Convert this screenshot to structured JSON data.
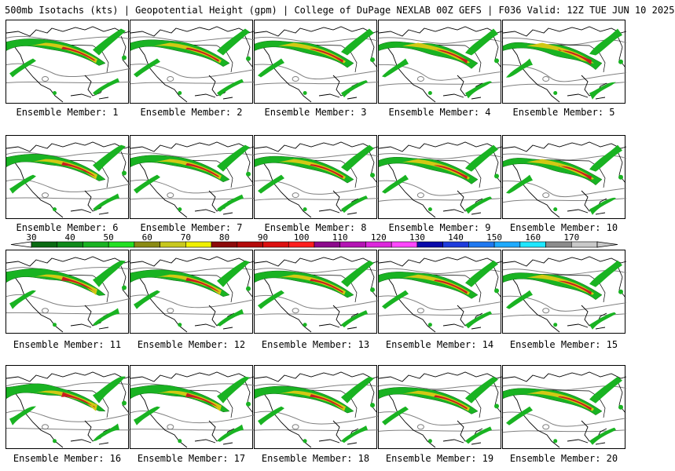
{
  "header": {
    "title": "500mb Isotachs (kts) | Geopotential Height (gpm) | College of DuPage NEXLAB   00Z GEFS | F036 Valid: 12Z TUE JUN 10 2025"
  },
  "panels": [
    {
      "member": 1,
      "caption": "Ensemble Member: 1"
    },
    {
      "member": 2,
      "caption": "Ensemble Member: 2"
    },
    {
      "member": 3,
      "caption": "Ensemble Member: 3"
    },
    {
      "member": 4,
      "caption": "Ensemble Member: 4"
    },
    {
      "member": 5,
      "caption": "Ensemble Member: 5"
    },
    {
      "member": 6,
      "caption": "Ensemble Member: 6"
    },
    {
      "member": 7,
      "caption": "Ensemble Member: 7"
    },
    {
      "member": 8,
      "caption": "Ensemble Member: 8"
    },
    {
      "member": 9,
      "caption": "Ensemble Member: 9"
    },
    {
      "member": 10,
      "caption": "Ensemble Member: 10"
    },
    {
      "member": 11,
      "caption": "Ensemble Member: 11"
    },
    {
      "member": 12,
      "caption": "Ensemble Member: 12"
    },
    {
      "member": 13,
      "caption": "Ensemble Member: 13"
    },
    {
      "member": 14,
      "caption": "Ensemble Member: 14"
    },
    {
      "member": 15,
      "caption": "Ensemble Member: 15"
    },
    {
      "member": 16,
      "caption": "Ensemble Member: 16"
    },
    {
      "member": 17,
      "caption": "Ensemble Member: 17"
    },
    {
      "member": 18,
      "caption": "Ensemble Member: 18"
    },
    {
      "member": 19,
      "caption": "Ensemble Member: 19"
    },
    {
      "member": 20,
      "caption": "Ensemble Member: 20"
    }
  ],
  "colorbar": {
    "labels": [
      "30",
      "40",
      "50",
      "60",
      "70",
      "80",
      "90",
      "100",
      "110",
      "120",
      "130",
      "140",
      "150",
      "160",
      "170"
    ],
    "colors": [
      "#0a6a12",
      "#0f8a1a",
      "#19b322",
      "#22e022",
      "#8a8a14",
      "#c8c81e",
      "#f0f000",
      "#8c0a0a",
      "#b40a0a",
      "#dc1010",
      "#ff1e1e",
      "#8c0a8c",
      "#b414b4",
      "#dc28dc",
      "#ff46ff",
      "#0a0aaa",
      "#1e3cdc",
      "#1e78f0",
      "#1eaaff",
      "#1ee6ff",
      "#8c8c8c",
      "#c8c8c8"
    ]
  },
  "map_style": {
    "jet_inner": "#d2c814",
    "jet_core": "#c81e1e",
    "jet_outer": "#19b322",
    "height_contour": "#808080",
    "coastline": "#000000"
  }
}
